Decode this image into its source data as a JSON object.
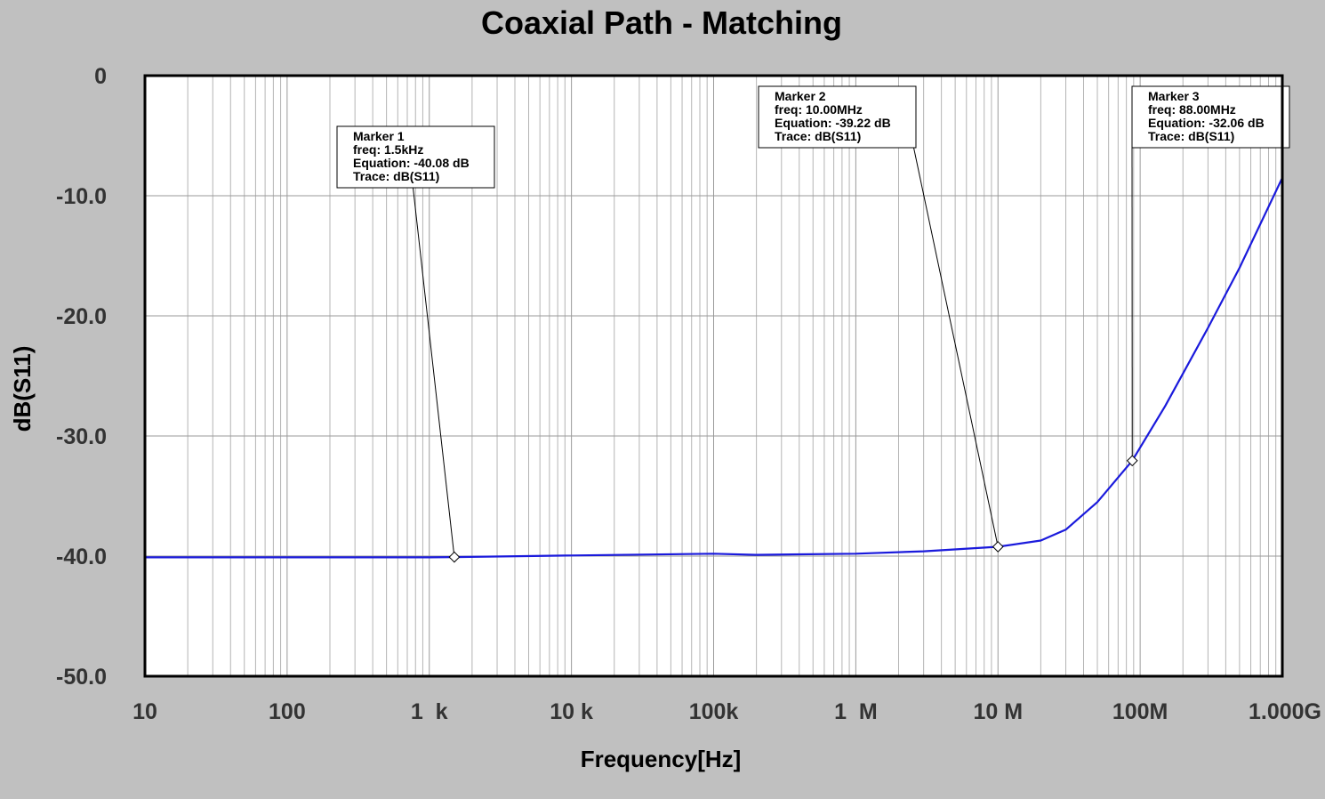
{
  "chart_data": {
    "type": "line",
    "title": "Coaxial Path - Matching",
    "xlabel": "Frequency[Hz]",
    "ylabel": "dB(S11)",
    "xscale": "log",
    "xlim": [
      10,
      1000000000
    ],
    "ylim": [
      -50,
      0
    ],
    "grid": true,
    "x_tick_labels": [
      {
        "value": 10,
        "label": "10"
      },
      {
        "value": 100,
        "label": "100"
      },
      {
        "value": 1000,
        "label": "1  k"
      },
      {
        "value": 10000,
        "label": "10 k"
      },
      {
        "value": 100000,
        "label": "100k"
      },
      {
        "value": 1000000,
        "label": "1  M"
      },
      {
        "value": 10000000,
        "label": "10 M"
      },
      {
        "value": 100000000,
        "label": "100M"
      },
      {
        "value": 1000000000,
        "label": "1.000G"
      }
    ],
    "y_tick_labels": [
      {
        "value": 0,
        "label": "0"
      },
      {
        "value": -10,
        "label": "-10.0"
      },
      {
        "value": -20,
        "label": "-20.0"
      },
      {
        "value": -30,
        "label": "-30.0"
      },
      {
        "value": -40,
        "label": "-40.0"
      },
      {
        "value": -50,
        "label": "-50.0"
      }
    ],
    "series": [
      {
        "name": "dB(S11)",
        "color": "#1a1adc",
        "points": [
          [
            10,
            -40.1
          ],
          [
            100,
            -40.1
          ],
          [
            1000,
            -40.1
          ],
          [
            1500,
            -40.08
          ],
          [
            10000,
            -39.95
          ],
          [
            100000,
            -39.8
          ],
          [
            200000,
            -39.9
          ],
          [
            1000000,
            -39.8
          ],
          [
            3000000,
            -39.6
          ],
          [
            10000000,
            -39.22
          ],
          [
            20000000,
            -38.7
          ],
          [
            30000000,
            -37.8
          ],
          [
            50000000,
            -35.5
          ],
          [
            88000000,
            -32.06
          ],
          [
            150000000,
            -27.5
          ],
          [
            300000000,
            -21.0
          ],
          [
            500000000,
            -16.0
          ],
          [
            1000000000,
            -8.5
          ]
        ]
      }
    ],
    "markers": [
      {
        "title": "Marker 1",
        "freq": "freq: 1.5kHz",
        "equation": "Equation: -40.08 dB",
        "trace": "Trace: dB(S11)",
        "x": 1500,
        "y": -40.08
      },
      {
        "title": "Marker 2",
        "freq": "freq: 10.00MHz",
        "equation": "Equation: -39.22 dB",
        "trace": "Trace: dB(S11)",
        "x": 10000000,
        "y": -39.22
      },
      {
        "title": "Marker 3",
        "freq": "freq: 88.00MHz",
        "equation": "Equation: -32.06 dB",
        "trace": "Trace: dB(S11)",
        "x": 88000000,
        "y": -32.06
      }
    ]
  }
}
